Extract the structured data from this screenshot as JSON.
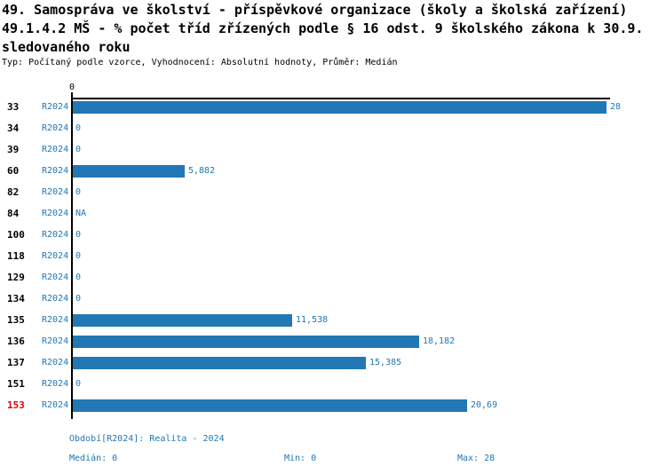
{
  "title": {
    "line1": "49. Samospráva ve školství - příspěvkové organizace (školy a školská zařízení)",
    "line2": "49.1.4.2 MŠ - % počet tříd zřízených podle § 16 odst. 9 školského zákona k 30.9.",
    "line3": "sledovaného roku",
    "subtitle": "Typ: Počítaný podle vzorce, Vyhodnocení: Absolutní hodnoty, Průměr: Medián"
  },
  "chart_data": {
    "type": "bar",
    "orientation": "horizontal",
    "series_label": "R2024",
    "categories": [
      "33",
      "34",
      "39",
      "60",
      "82",
      "84",
      "100",
      "118",
      "129",
      "134",
      "135",
      "136",
      "137",
      "151",
      "153"
    ],
    "values": [
      28,
      0,
      0,
      5.882,
      0,
      null,
      0,
      0,
      0,
      0,
      11.538,
      18.182,
      15.385,
      0,
      20.69
    ],
    "value_labels": [
      "28",
      "0",
      "0",
      "5,882",
      "0",
      "NA",
      "0",
      "0",
      "0",
      "0",
      "11,538",
      "18,182",
      "15,385",
      "0",
      "20,69"
    ],
    "highlighted_category": "153",
    "axis": {
      "tick_label": "0",
      "xlim": [
        0,
        28.3
      ],
      "grid": false
    },
    "legend_position": "bottom",
    "colors": {
      "bar": "#2277b5",
      "text_blue": "#1f77b4",
      "highlight_red": "#e00000",
      "axis_black": "#000000"
    }
  },
  "footer": {
    "period": "Období[R2024]: Realita - 2024",
    "median": "Medián: 0",
    "min": "Min: 0",
    "max": "Max: 28"
  }
}
